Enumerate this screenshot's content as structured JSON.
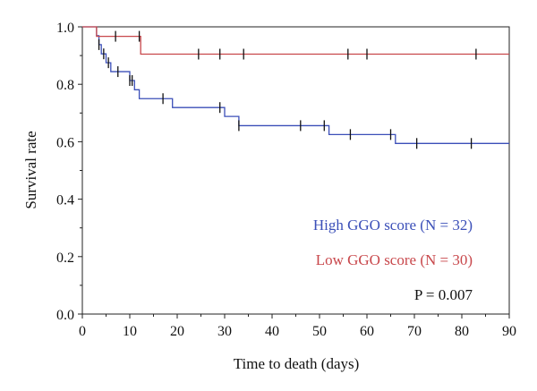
{
  "chart_data": {
    "type": "line",
    "subtype": "kaplan-meier-step",
    "xlabel": "Time to death (days)",
    "ylabel": "Survival rate",
    "xlim": [
      0,
      90
    ],
    "ylim": [
      0,
      1.0
    ],
    "x_ticks": [
      0,
      10,
      20,
      30,
      40,
      50,
      60,
      70,
      80,
      90
    ],
    "y_ticks": [
      0.0,
      0.2,
      0.4,
      0.6,
      0.8,
      1.0
    ],
    "y_tick_labels": [
      "0.0",
      "0.2",
      "0.4",
      "0.6",
      "0.8",
      "1.0"
    ],
    "grid": false,
    "legend_position": "bottom-right",
    "series": [
      {
        "name": "High GGO score (N = 32)",
        "color": "#3b4fb8",
        "steps": [
          [
            0,
            1.0
          ],
          [
            3,
            0.969
          ],
          [
            3.5,
            0.938
          ],
          [
            4,
            0.906
          ],
          [
            5,
            0.875
          ],
          [
            6,
            0.844
          ],
          [
            10,
            0.813
          ],
          [
            11,
            0.781
          ],
          [
            12,
            0.75
          ],
          [
            17,
            0.75
          ],
          [
            19,
            0.719
          ],
          [
            29,
            0.719
          ],
          [
            30,
            0.688
          ],
          [
            33,
            0.656
          ],
          [
            51,
            0.656
          ],
          [
            52,
            0.625
          ],
          [
            65,
            0.625
          ],
          [
            66,
            0.594
          ],
          [
            90,
            0.594
          ]
        ],
        "censored": [
          3.5,
          4.5,
          5.5,
          7.5,
          10,
          10.5,
          17,
          29,
          33,
          46,
          51,
          56.5,
          65,
          70.5,
          82
        ]
      },
      {
        "name": "Low GGO score (N = 30)",
        "color": "#c8474b",
        "steps": [
          [
            0,
            1.0
          ],
          [
            3,
            0.967
          ],
          [
            12,
            0.967
          ],
          [
            12.3,
            0.905
          ],
          [
            90,
            0.905
          ]
        ],
        "censored": [
          7,
          12,
          24.5,
          29,
          34,
          56,
          60,
          83
        ]
      }
    ],
    "annotation": "P = 0.007",
    "censor_mark_color": "#111111"
  }
}
